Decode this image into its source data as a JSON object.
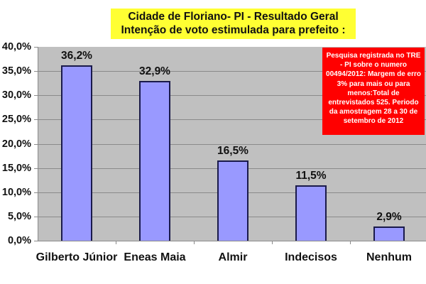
{
  "title": {
    "line1": "Cidade de Floriano- PI - Resultado Geral",
    "line2": "Intenção de voto estimulada para prefeito :"
  },
  "note": "Pesquisa registrada no TRE - PI sobre o numero 00494/2012: Margem de erro 3% para mais ou para menos:Total de entrevistados 525. Periodo da amostragem 28 a 30 de setembro de 2012",
  "colors": {
    "bar_fill": "#9999ff",
    "bar_border": "#1a1a4a",
    "plot_background": "#c0c0c0",
    "title_background": "#ffff33",
    "note_background": "#ff0000"
  },
  "y_ticks": [
    "40,0%",
    "35,0%",
    "30,0%",
    "25,0%",
    "20,0%",
    "15,0%",
    "10,0%",
    "5,0%",
    "0,0%"
  ],
  "bars": [
    {
      "category": "Gilberto Júnior",
      "value": 36.2,
      "label": "36,2%"
    },
    {
      "category": "Eneas Maia",
      "value": 32.9,
      "label": "32,9%"
    },
    {
      "category": "Almir",
      "value": 16.5,
      "label": "16,5%"
    },
    {
      "category": "Indecisos",
      "value": 11.5,
      "label": "11,5%"
    },
    {
      "category": "Nenhum",
      "value": 2.9,
      "label": "2,9%"
    }
  ],
  "chart_data": {
    "type": "bar",
    "title": "Cidade de Floriano- PI - Resultado Geral / Intenção de voto estimulada para prefeito :",
    "categories": [
      "Gilberto Júnior",
      "Eneas Maia",
      "Almir",
      "Indecisos",
      "Nenhum"
    ],
    "values": [
      36.2,
      32.9,
      16.5,
      11.5,
      2.9
    ],
    "data_labels": [
      "36,2%",
      "32,9%",
      "16,5%",
      "11,5%",
      "2,9%"
    ],
    "xlabel": "",
    "ylabel": "",
    "ylim": [
      0,
      40
    ],
    "y_ticks": [
      "0,0%",
      "5,0%",
      "10,0%",
      "15,0%",
      "20,0%",
      "25,0%",
      "30,0%",
      "35,0%",
      "40,0%"
    ],
    "grid": true,
    "legend": null,
    "annotations": [
      "Pesquisa registrada no TRE - PI sobre o numero 00494/2012: Margem de erro 3% para mais ou para menos:Total de entrevistados 525. Periodo da amostragem 28 a 30 de setembro de 2012"
    ]
  }
}
